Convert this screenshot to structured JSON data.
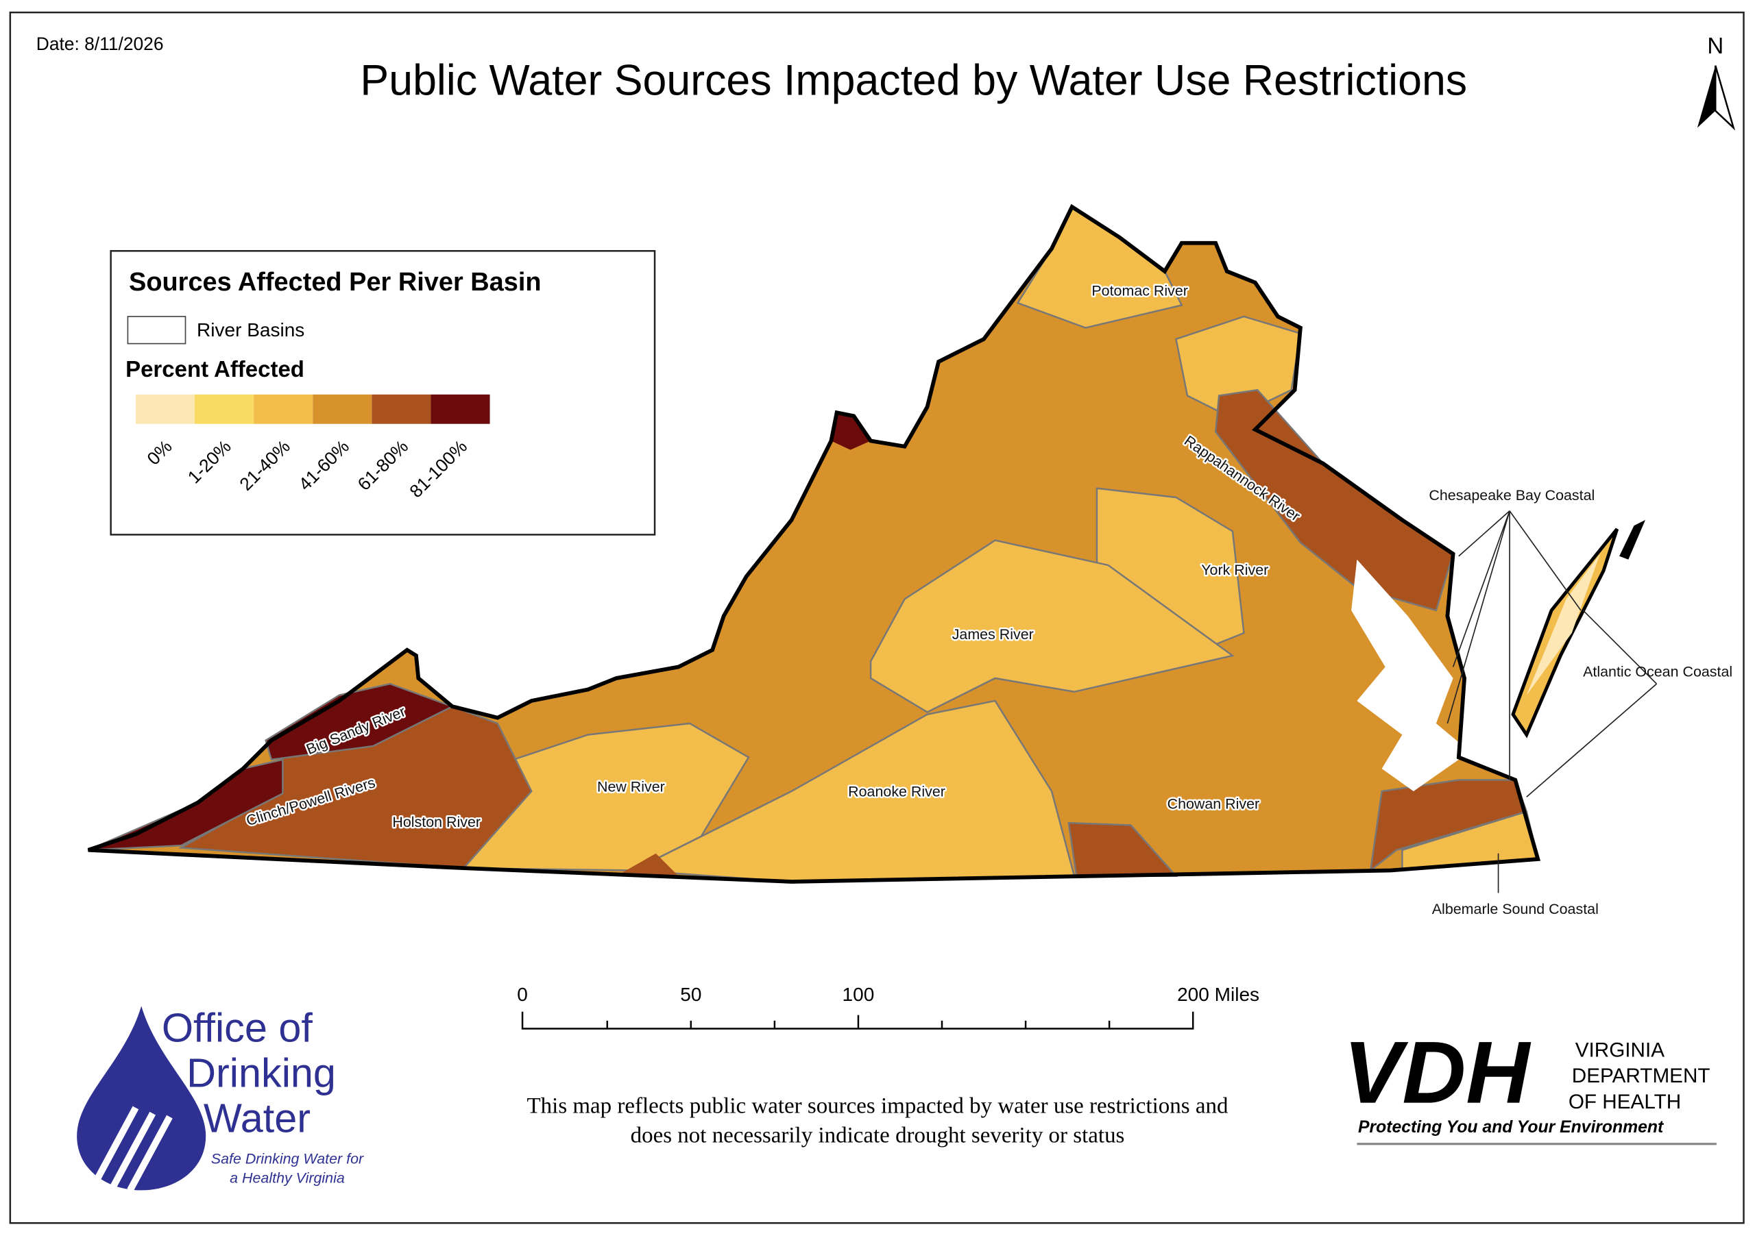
{
  "header": {
    "date": "Date: 8/11/2026",
    "title": "Public Water Sources Impacted by Water Use Restrictions",
    "north": "N"
  },
  "legend": {
    "title": "Sources Affected Per River Basin",
    "basins_label": "River Basins",
    "percent_title": "Percent Affected",
    "classes": [
      {
        "label": "0%",
        "color": "#fde7b4"
      },
      {
        "label": "1-20%",
        "color": "#f9da63"
      },
      {
        "label": "21-40%",
        "color": "#f3bd4c"
      },
      {
        "label": "41-60%",
        "color": "#d8922c"
      },
      {
        "label": "61-80%",
        "color": "#aa521d"
      },
      {
        "label": "81-100%",
        "color": "#6b0b0b"
      }
    ]
  },
  "basins": [
    "Potomac River",
    "Rappahannock River",
    "York River",
    "James River",
    "New River",
    "Roanoke River",
    "Chowan River",
    "Big Sandy River",
    "Clinch/Powell Rivers",
    "Holston River",
    "Chesapeake Bay Coastal",
    "Atlantic Ocean Coastal",
    "Albemarle Sound Coastal"
  ],
  "scale_bar": {
    "labels": [
      "0",
      "50",
      "100",
      "200 Miles"
    ]
  },
  "note": [
    "This map reflects public water sources impacted by water use restrictions and",
    "does not necessarily indicate drought severity or status"
  ],
  "odw_logo": {
    "lines": [
      "Office of",
      "Drinking",
      "Water"
    ],
    "tagline": [
      "Safe Drinking Water for",
      "a Healthy Virginia"
    ]
  },
  "vdh_logo": {
    "mark": "VDH",
    "lines": [
      "VIRGINIA",
      "DEPARTMENT",
      "OF HEALTH"
    ],
    "tagline": "Protecting You and Your Environment"
  }
}
